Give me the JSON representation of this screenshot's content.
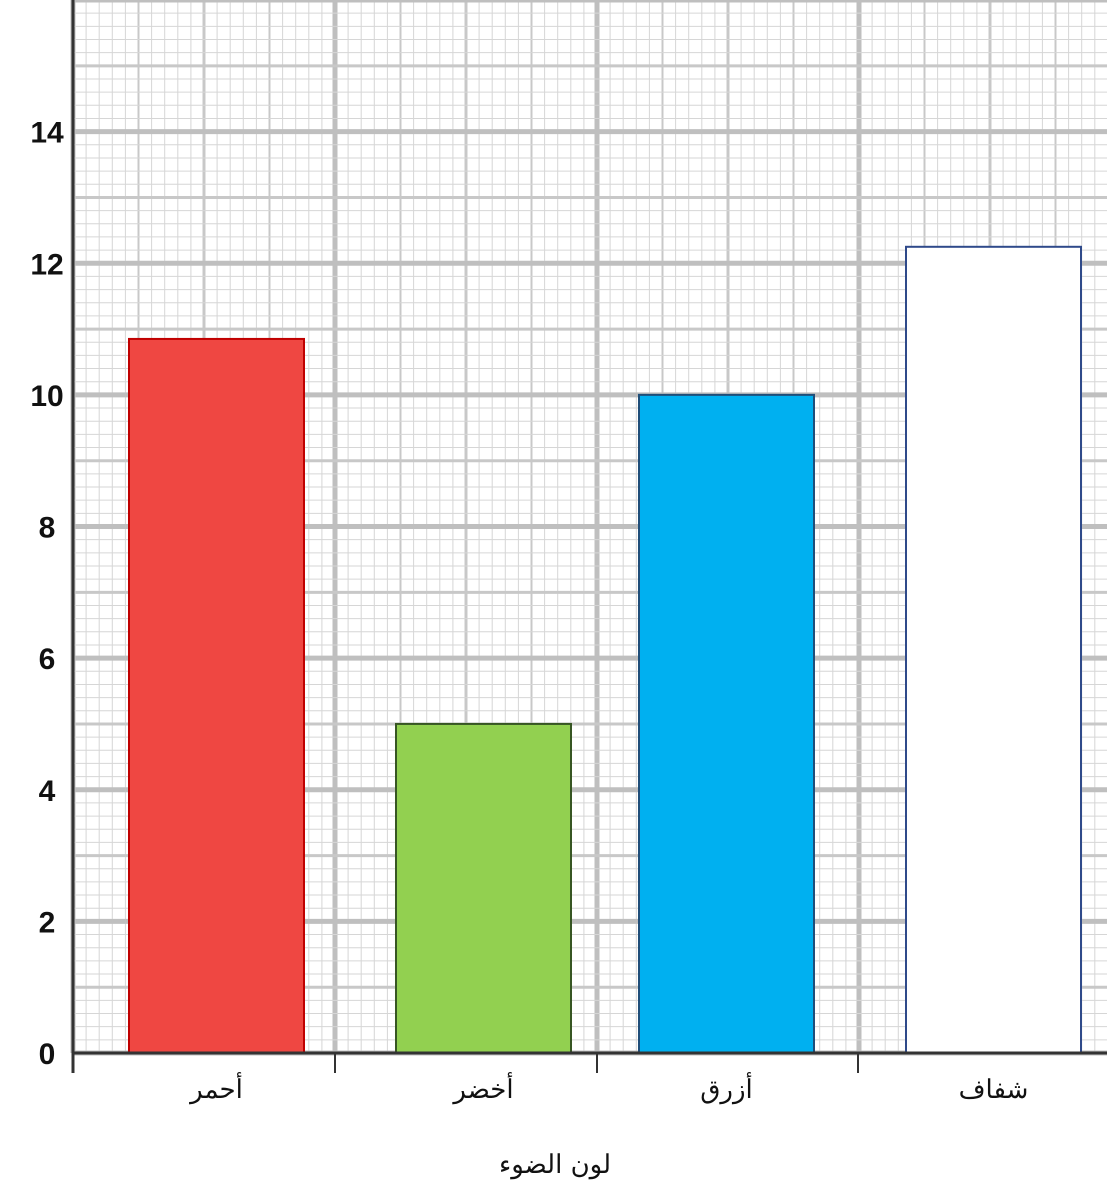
{
  "chart_data": {
    "type": "bar",
    "categories": [
      "أحمر",
      "أخضر",
      "أزرق",
      "شفاف"
    ],
    "values": [
      10.85,
      5.0,
      10.0,
      12.25
    ],
    "xlabel": "لون الضوء",
    "ylabel": "",
    "ylim": [
      0,
      16
    ],
    "yticks": [
      0,
      2,
      4,
      6,
      8,
      10,
      12,
      14
    ],
    "grid": true,
    "colors": {
      "bar_fills": [
        "#ef4742",
        "#92d050",
        "#00b0f0",
        "#ffffff"
      ],
      "bar_strokes": [
        "#c00000",
        "#375623",
        "#1f4e79",
        "#2f4a8a"
      ],
      "grid_major": "#bfbfbf",
      "grid_mid": "#c8c8c8",
      "grid_minor": "#d6d6d6",
      "axis": "#333333"
    }
  }
}
